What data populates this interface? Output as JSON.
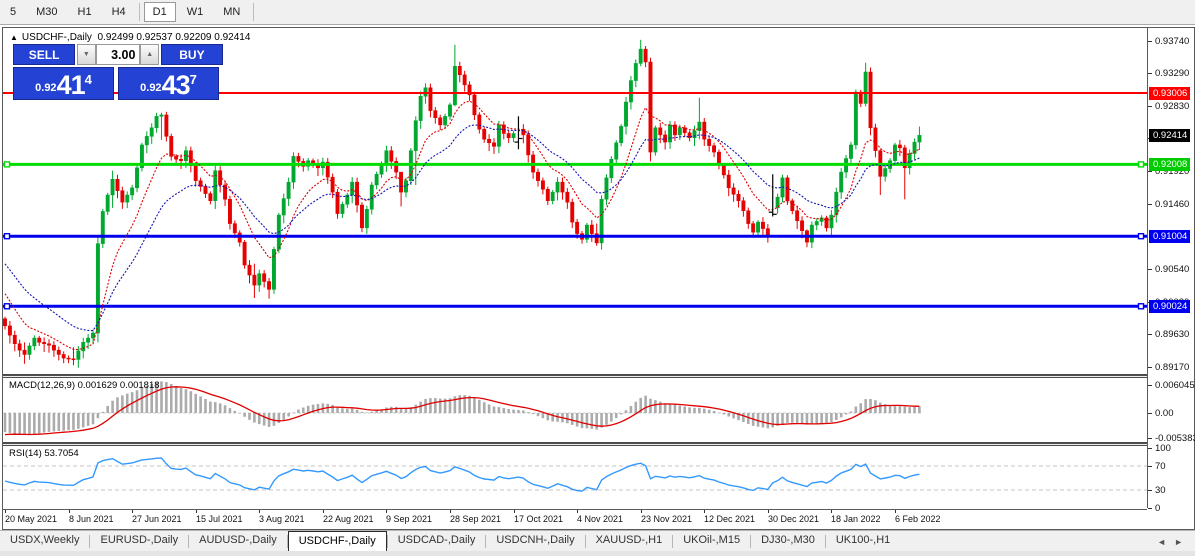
{
  "toolbar": {
    "timeframes": [
      {
        "label": "5",
        "active": false
      },
      {
        "label": "M30",
        "active": false
      },
      {
        "label": "H1",
        "active": false
      },
      {
        "label": "H4",
        "active": false
      },
      {
        "label": "D1",
        "active": true
      },
      {
        "label": "W1",
        "active": false
      },
      {
        "label": "MN",
        "active": false
      }
    ]
  },
  "icons": {
    "collapse": "▲",
    "spinner_down": "▼",
    "spinner_up": "▲",
    "tab_scroll_left": "◄",
    "tab_scroll_right": "►"
  },
  "chart": {
    "title_symbol": "USDCHF-,Daily",
    "title_quote": "0.92499 0.92537 0.92209 0.92414",
    "trade_panel": {
      "sell_label": "SELL",
      "buy_label": "BUY",
      "volume": "3.00",
      "sell_price": {
        "small": "0.92",
        "big": "41",
        "sup": "4"
      },
      "buy_price": {
        "small": "0.92",
        "big": "43",
        "sup": "7"
      }
    }
  },
  "macd_panel": {
    "label": "MACD(12,26,9) 0.001629 0.001818",
    "ticks": [
      {
        "text": "0.006045",
        "value": 0.006045
      },
      {
        "text": "0.00",
        "value": 0.0
      },
      {
        "text": "-0.005383",
        "value": -0.005383
      }
    ]
  },
  "rsi_panel": {
    "label": "RSI(14) 53.7054",
    "ticks": [
      {
        "text": "100",
        "value": 100
      },
      {
        "text": "70",
        "value": 70
      },
      {
        "text": "30",
        "value": 30
      },
      {
        "text": "0",
        "value": 0
      }
    ]
  },
  "tabs": {
    "items": [
      "USDX,Weekly",
      "EURUSD-,Daily",
      "AUDUSD-,Daily",
      "USDCHF-,Daily",
      "USDCAD-,Daily",
      "USDCNH-,Daily",
      "XAUUSD-,H1",
      "UKOil-,M15",
      "DJ30-,M30",
      "UK100-,H1"
    ],
    "active_index": 3
  },
  "chart_data": {
    "type": "candlestick",
    "symbol": "USDCHF-",
    "timeframe": "Daily",
    "ohlc_current": {
      "open": 0.92499,
      "high": 0.92537,
      "low": 0.92209,
      "close": 0.92414
    },
    "current_price_label": "0.92414",
    "price_axis": {
      "top": 0.93915,
      "bottom": 0.89105,
      "tick_labels": [
        "0.93740",
        "0.93290",
        "0.92830",
        "0.92370",
        "0.91920",
        "0.91460",
        "0.90540",
        "0.90080",
        "0.89630",
        "0.89170"
      ],
      "tick_values": [
        0.9374,
        0.9329,
        0.9283,
        0.9237,
        0.9192,
        0.9146,
        0.9054,
        0.9008,
        0.8963,
        0.8917
      ]
    },
    "x_labels": [
      "20 May 2021",
      "8 Jun 2021",
      "27 Jun 2021",
      "15 Jul 2021",
      "3 Aug 2021",
      "22 Aug 2021",
      "9 Sep 2021",
      "28 Sep 2021",
      "17 Oct 2021",
      "4 Nov 2021",
      "23 Nov 2021",
      "12 Dec 2021",
      "30 Dec 2021",
      "18 Jan 2022",
      "6 Feb 2022"
    ],
    "bars_per_label": 13,
    "levels": [
      {
        "label": "0.93006",
        "price": 0.93006,
        "color": "#ff0000",
        "width": 2,
        "handles": false
      },
      {
        "label": "0.92008",
        "price": 0.92008,
        "color": "#00dd00",
        "width": 3,
        "handles": true
      },
      {
        "label": "0.91004",
        "price": 0.91004,
        "color": "#0000ee",
        "width": 3,
        "handles": true
      },
      {
        "label": "0.90024",
        "price": 0.90024,
        "color": "#0000ee",
        "width": 3,
        "handles": true
      }
    ],
    "colors": {
      "bull": "#00a830",
      "bear": "#e60000",
      "ma_fast": "#dd0000",
      "ma_slow": "#1515b5",
      "macd_hist": "#ababab",
      "macd_signal": "#e00000",
      "rsi_line": "#3399ff",
      "badge_current": "#000000"
    },
    "first_open": 0.8985,
    "closes": [
      0.8975,
      0.8962,
      0.895,
      0.8941,
      0.8935,
      0.8947,
      0.8958,
      0.8952,
      0.895,
      0.8948,
      0.8941,
      0.8935,
      0.893,
      0.8929,
      0.8928,
      0.894,
      0.8952,
      0.8958,
      0.8965,
      0.909,
      0.9135,
      0.9158,
      0.918,
      0.9164,
      0.9148,
      0.9158,
      0.9168,
      0.9196,
      0.9228,
      0.924,
      0.9252,
      0.9268,
      0.927,
      0.924,
      0.9212,
      0.9208,
      0.9206,
      0.922,
      0.9199,
      0.9178,
      0.917,
      0.916,
      0.915,
      0.9192,
      0.9172,
      0.9152,
      0.9118,
      0.9105,
      0.9092,
      0.906,
      0.9046,
      0.9032,
      0.9048,
      0.9037,
      0.9026,
      0.9082,
      0.913,
      0.9153,
      0.9176,
      0.9212,
      0.9205,
      0.9198,
      0.9206,
      0.9201,
      0.9196,
      0.9204,
      0.9183,
      0.9162,
      0.9132,
      0.9145,
      0.9158,
      0.9176,
      0.9144,
      0.9112,
      0.9138,
      0.9172,
      0.9187,
      0.9202,
      0.922,
      0.9205,
      0.919,
      0.9162,
      0.9178,
      0.922,
      0.9262,
      0.9296,
      0.9308,
      0.9276,
      0.9266,
      0.9256,
      0.9268,
      0.9284,
      0.9338,
      0.9326,
      0.9312,
      0.9298,
      0.927,
      0.925,
      0.9236,
      0.9231,
      0.9226,
      0.9256,
      0.9244,
      0.9238,
      0.9244,
      0.925,
      0.9242,
      0.9214,
      0.919,
      0.9178,
      0.9166,
      0.915,
      0.9162,
      0.9176,
      0.9162,
      0.9148,
      0.912,
      0.9104,
      0.9096,
      0.9116,
      0.9104,
      0.9091,
      0.9152,
      0.9182,
      0.9208,
      0.9231,
      0.9254,
      0.9288,
      0.9318,
      0.9342,
      0.9362,
      0.9344,
      0.9218,
      0.9252,
      0.9242,
      0.9232,
      0.9256,
      0.9242,
      0.9252,
      0.9245,
      0.9238,
      0.9248,
      0.926,
      0.9236,
      0.9227,
      0.9218,
      0.92,
      0.9186,
      0.9168,
      0.9159,
      0.915,
      0.9136,
      0.9118,
      0.9106,
      0.912,
      0.9111,
      0.9102,
      0.914,
      0.9155,
      0.9182,
      0.915,
      0.9136,
      0.9122,
      0.9108,
      0.9092,
      0.9116,
      0.9121,
      0.9126,
      0.9112,
      0.913,
      0.9162,
      0.919,
      0.9209,
      0.9228,
      0.9302,
      0.9286,
      0.933,
      0.9252,
      0.922,
      0.9184,
      0.9195,
      0.9206,
      0.9228,
      0.9224,
      0.9196,
      0.9216,
      0.9232,
      0.92414
    ],
    "wick_overrides": {
      "4": [
        0.8952,
        0.8922
      ],
      "14": [
        0.8945,
        0.892
      ],
      "19": [
        0.91,
        0.8952
      ],
      "22": [
        0.9192,
        0.914
      ],
      "31": [
        0.9273,
        0.9245
      ],
      "32": [
        0.9273,
        0.9235
      ],
      "51": [
        0.9062,
        0.9014
      ],
      "54": [
        0.9042,
        0.9013
      ],
      "73": [
        0.9148,
        0.9106
      ],
      "81": [
        0.9186,
        0.9142
      ],
      "84": [
        0.9268,
        0.9172
      ],
      "92": [
        0.9368,
        0.9282
      ],
      "121": [
        0.9118,
        0.9087
      ],
      "130": [
        0.9375,
        0.9338
      ],
      "132": [
        0.935,
        0.9205
      ],
      "142": [
        0.9294,
        0.9236
      ],
      "164": [
        0.911,
        0.9085
      ],
      "176": [
        0.9343,
        0.9282
      ],
      "179": [
        0.9222,
        0.9158
      ],
      "184": [
        0.9228,
        0.9152
      ],
      "187": [
        0.92537,
        0.92209
      ]
    },
    "black_bars": [
      {
        "index": 105,
        "high": 0.9268,
        "low": 0.9222,
        "open": 0.9232,
        "close": 0.9237
      },
      {
        "index": 157,
        "high": 0.9187,
        "low": 0.9128,
        "open": 0.9134,
        "close": 0.9131
      }
    ],
    "ma_fast": {
      "period": 10,
      "seed": 0.903,
      "style": "dotted"
    },
    "ma_slow": {
      "period": 22,
      "seed": 0.907,
      "style": "dotted"
    },
    "macd": {
      "fast": 12,
      "slow": 26,
      "signal": 9,
      "current_macd": 0.001629,
      "current_signal": 0.001818,
      "scale_max": 0.006045,
      "scale_min": -0.005383
    },
    "rsi": {
      "period": 14,
      "current": 53.7054,
      "levels": [
        70,
        30
      ],
      "scale": [
        0,
        100
      ]
    }
  }
}
